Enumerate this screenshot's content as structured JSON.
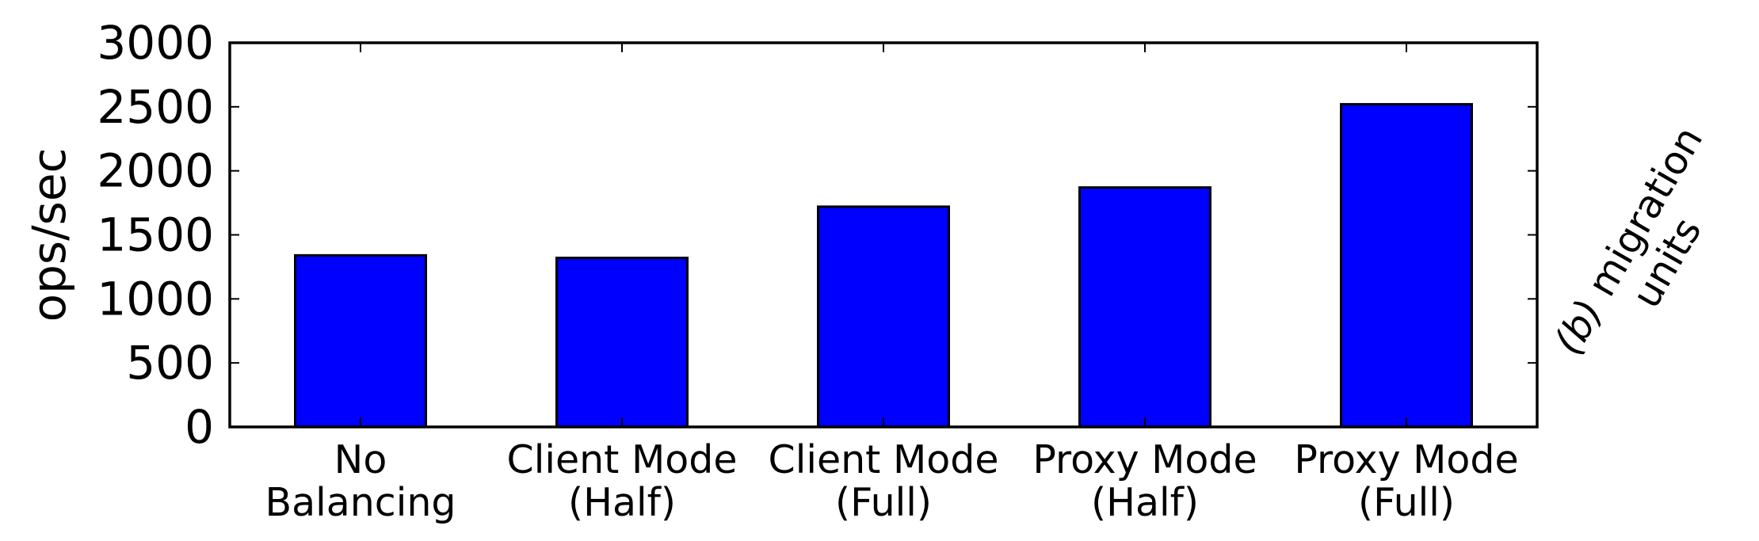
{
  "chart_data": {
    "type": "bar",
    "categories": [
      [
        "No",
        "Balancing"
      ],
      [
        "Client Mode",
        "(Half)"
      ],
      [
        "Client Mode",
        "(Full)"
      ],
      [
        "Proxy Mode",
        "(Half)"
      ],
      [
        "Proxy Mode",
        "(Full)"
      ]
    ],
    "values": [
      1340,
      1320,
      1720,
      1870,
      2520
    ],
    "ylabel": "ops/sec",
    "xlabel": "",
    "ylim": [
      0,
      3000
    ],
    "yticks": [
      0,
      500,
      1000,
      1500,
      2000,
      2500,
      3000
    ],
    "grid": false,
    "legend": "none",
    "bar_color": "#0000ff",
    "caption": {
      "prefix": "(b)",
      "lines": [
        "migration",
        "units"
      ]
    }
  }
}
